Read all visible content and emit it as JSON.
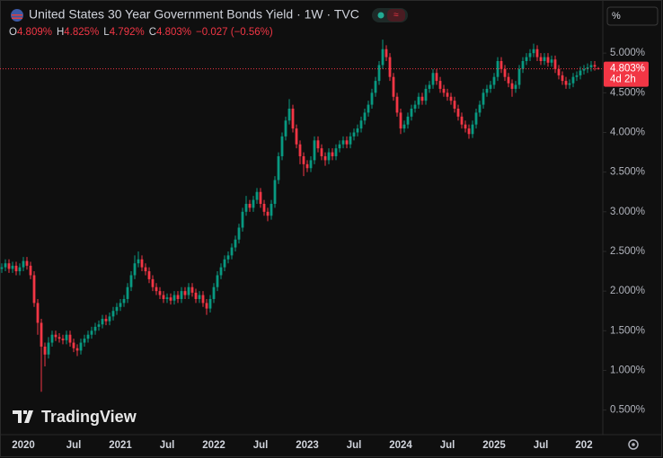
{
  "chart_data": {
    "type": "candlestick",
    "title": "United States 30 Year Government Bonds Yield · 1W · TVC",
    "ohlc_legend": [
      {
        "key": "O",
        "value": "4.809%"
      },
      {
        "key": "H",
        "value": "4.825%"
      },
      {
        "key": "L",
        "value": "4.792%"
      },
      {
        "key": "C",
        "value": "4.803%"
      }
    ],
    "change": "−0.027 (−0.56%)",
    "price_label": "4.803%",
    "countdown": "4d 2h",
    "scale_button": "%",
    "watermark": "TradingView",
    "up_color": "#089981",
    "down_color": "#f23645",
    "categories": [
      null,
      null,
      null,
      null,
      null,
      null,
      "2020",
      null,
      null,
      null,
      null,
      null,
      null,
      null,
      null,
      null,
      null,
      null,
      null,
      null,
      "Jul",
      null,
      null,
      null,
      null,
      null,
      null,
      null,
      null,
      null,
      null,
      null,
      null,
      "2021",
      null,
      null,
      null,
      null,
      null,
      null,
      null,
      null,
      null,
      null,
      null,
      null,
      "Jul",
      null,
      null,
      null,
      null,
      null,
      null,
      null,
      null,
      null,
      null,
      null,
      null,
      "2022",
      null,
      null,
      null,
      null,
      null,
      null,
      null,
      null,
      null,
      null,
      null,
      null,
      "Jul",
      null,
      null,
      null,
      null,
      null,
      null,
      null,
      null,
      null,
      null,
      null,
      null,
      "2023",
      null,
      null,
      null,
      null,
      null,
      null,
      null,
      null,
      null,
      null,
      null,
      null,
      "Jul",
      null,
      null,
      null,
      null,
      null,
      null,
      null,
      null,
      null,
      null,
      null,
      null,
      "2024",
      null,
      null,
      null,
      null,
      null,
      null,
      null,
      null,
      null,
      null,
      null,
      null,
      "Jul",
      null,
      null,
      null,
      null,
      null,
      null,
      null,
      null,
      null,
      null,
      null,
      null,
      "2025",
      null,
      null,
      null,
      null,
      null,
      null,
      null,
      null,
      null,
      null,
      null,
      null,
      "Jul",
      null,
      null,
      null,
      null,
      null,
      null,
      null,
      null,
      null,
      null,
      null,
      "202",
      null,
      null,
      null,
      null
    ],
    "open": [
      2.28,
      2.3,
      2.35,
      2.28,
      2.32,
      2.25,
      2.3,
      2.38,
      2.32,
      2.2,
      1.85,
      1.6,
      1.3,
      1.2,
      1.35,
      1.45,
      1.42,
      1.4,
      1.38,
      1.45,
      1.35,
      1.28,
      1.25,
      1.35,
      1.4,
      1.45,
      1.5,
      1.55,
      1.58,
      1.65,
      1.62,
      1.68,
      1.75,
      1.8,
      1.85,
      1.9,
      2.05,
      2.2,
      2.35,
      2.4,
      2.3,
      2.25,
      2.15,
      2.05,
      2.0,
      1.95,
      1.9,
      1.92,
      1.88,
      1.95,
      1.9,
      2.0,
      1.95,
      2.05,
      1.98,
      1.9,
      1.95,
      1.85,
      1.78,
      1.9,
      2.05,
      2.2,
      2.3,
      2.4,
      2.45,
      2.55,
      2.65,
      2.8,
      3.0,
      3.1,
      3.05,
      3.15,
      3.25,
      3.1,
      3.0,
      2.95,
      3.1,
      3.4,
      3.7,
      3.95,
      4.15,
      4.3,
      4.05,
      3.85,
      3.7,
      3.6,
      3.55,
      3.65,
      3.9,
      3.8,
      3.7,
      3.65,
      3.75,
      3.7,
      3.8,
      3.85,
      3.9,
      3.85,
      3.95,
      4.0,
      4.05,
      4.15,
      4.25,
      4.35,
      4.5,
      4.65,
      4.85,
      5.05,
      4.95,
      4.7,
      4.45,
      4.25,
      4.05,
      4.1,
      4.2,
      4.3,
      4.35,
      4.45,
      4.4,
      4.55,
      4.6,
      4.75,
      4.65,
      4.55,
      4.5,
      4.45,
      4.4,
      4.3,
      4.2,
      4.1,
      4.05,
      3.98,
      4.1,
      4.25,
      4.35,
      4.5,
      4.55,
      4.6,
      4.7,
      4.9,
      4.8,
      4.7,
      4.62,
      4.55,
      4.6,
      4.8,
      4.9,
      4.95,
      5.0,
      5.05,
      4.95,
      4.9,
      4.95,
      4.88,
      4.92,
      4.8,
      4.72,
      4.65,
      4.6,
      4.62,
      4.7,
      4.72,
      4.78,
      4.8,
      4.82,
      4.85,
      4.809
    ],
    "high": [
      2.35,
      2.4,
      2.4,
      2.37,
      2.37,
      2.35,
      2.43,
      2.43,
      2.37,
      2.25,
      1.9,
      1.65,
      1.35,
      1.42,
      1.5,
      1.5,
      1.47,
      1.45,
      1.5,
      1.5,
      1.4,
      1.33,
      1.4,
      1.45,
      1.5,
      1.55,
      1.6,
      1.63,
      1.7,
      1.7,
      1.73,
      1.8,
      1.85,
      1.9,
      1.95,
      2.1,
      2.25,
      2.45,
      2.5,
      2.45,
      2.35,
      2.3,
      2.2,
      2.1,
      2.05,
      2.0,
      1.97,
      1.97,
      2.0,
      2.0,
      2.05,
      2.05,
      2.1,
      2.1,
      2.03,
      2.0,
      2.0,
      1.9,
      1.95,
      2.1,
      2.25,
      2.35,
      2.45,
      2.5,
      2.6,
      2.7,
      2.85,
      3.05,
      3.2,
      3.15,
      3.2,
      3.3,
      3.3,
      3.15,
      3.05,
      3.15,
      3.45,
      3.75,
      4.0,
      4.2,
      4.42,
      4.35,
      4.1,
      3.9,
      3.75,
      3.65,
      3.7,
      3.95,
      3.95,
      3.85,
      3.75,
      3.8,
      3.8,
      3.85,
      3.9,
      3.95,
      3.95,
      4.0,
      4.05,
      4.1,
      4.2,
      4.3,
      4.4,
      4.55,
      4.7,
      4.9,
      5.17,
      5.1,
      5.0,
      4.75,
      4.5,
      4.3,
      4.15,
      4.25,
      4.35,
      4.4,
      4.5,
      4.5,
      4.6,
      4.65,
      4.8,
      4.8,
      4.7,
      4.6,
      4.55,
      4.5,
      4.45,
      4.35,
      4.25,
      4.15,
      4.1,
      4.15,
      4.3,
      4.4,
      4.55,
      4.6,
      4.65,
      4.75,
      4.95,
      4.95,
      4.85,
      4.75,
      4.67,
      4.65,
      4.85,
      4.95,
      5.0,
      5.05,
      5.12,
      5.1,
      5.0,
      5.0,
      5.0,
      4.97,
      4.97,
      4.85,
      4.77,
      4.7,
      4.67,
      4.75,
      4.77,
      4.83,
      4.85,
      4.87,
      4.9,
      4.9,
      4.825
    ],
    "low": [
      2.23,
      2.25,
      2.23,
      2.23,
      2.2,
      2.2,
      2.25,
      2.27,
      2.15,
      1.8,
      1.45,
      0.73,
      1.05,
      1.15,
      1.3,
      1.37,
      1.35,
      1.33,
      1.33,
      1.3,
      1.23,
      1.18,
      1.2,
      1.3,
      1.35,
      1.4,
      1.45,
      1.5,
      1.53,
      1.57,
      1.57,
      1.63,
      1.7,
      1.75,
      1.8,
      1.85,
      2.0,
      2.15,
      2.3,
      2.25,
      2.2,
      2.1,
      2.0,
      1.95,
      1.9,
      1.85,
      1.85,
      1.83,
      1.83,
      1.85,
      1.85,
      1.9,
      1.9,
      1.93,
      1.85,
      1.85,
      1.8,
      1.7,
      1.73,
      1.85,
      2.0,
      2.15,
      2.25,
      2.35,
      2.4,
      2.5,
      2.6,
      2.75,
      2.95,
      3.0,
      3.0,
      3.1,
      3.05,
      2.95,
      2.88,
      2.9,
      3.05,
      3.35,
      3.65,
      3.9,
      4.1,
      4.0,
      3.8,
      3.6,
      3.45,
      3.5,
      3.5,
      3.6,
      3.75,
      3.65,
      3.58,
      3.6,
      3.65,
      3.65,
      3.75,
      3.8,
      3.8,
      3.8,
      3.9,
      3.95,
      4.0,
      4.1,
      4.2,
      4.3,
      4.45,
      4.6,
      4.8,
      4.9,
      4.65,
      4.4,
      4.2,
      3.98,
      4.0,
      4.05,
      4.15,
      4.25,
      4.3,
      4.35,
      4.35,
      4.5,
      4.55,
      4.6,
      4.5,
      4.45,
      4.4,
      4.35,
      4.25,
      4.15,
      4.05,
      4.0,
      3.92,
      3.93,
      4.05,
      4.2,
      4.3,
      4.45,
      4.5,
      4.55,
      4.65,
      4.75,
      4.65,
      4.57,
      4.45,
      4.5,
      4.55,
      4.75,
      4.85,
      4.9,
      4.95,
      4.9,
      4.85,
      4.85,
      4.83,
      4.83,
      4.75,
      4.67,
      4.6,
      4.55,
      4.55,
      4.57,
      4.65,
      4.67,
      4.73,
      4.75,
      4.77,
      4.78,
      4.792
    ],
    "close": [
      2.3,
      2.35,
      2.28,
      2.32,
      2.25,
      2.3,
      2.38,
      2.32,
      2.2,
      1.85,
      1.6,
      1.3,
      1.2,
      1.35,
      1.45,
      1.42,
      1.4,
      1.38,
      1.45,
      1.35,
      1.28,
      1.25,
      1.35,
      1.4,
      1.45,
      1.5,
      1.55,
      1.58,
      1.65,
      1.62,
      1.68,
      1.75,
      1.8,
      1.85,
      1.9,
      2.05,
      2.2,
      2.35,
      2.4,
      2.3,
      2.25,
      2.15,
      2.05,
      2.0,
      1.95,
      1.9,
      1.92,
      1.88,
      1.95,
      1.9,
      2.0,
      1.95,
      2.05,
      1.98,
      1.9,
      1.95,
      1.85,
      1.78,
      1.9,
      2.05,
      2.2,
      2.3,
      2.4,
      2.45,
      2.55,
      2.65,
      2.8,
      3.0,
      3.1,
      3.05,
      3.15,
      3.25,
      3.1,
      3.0,
      2.95,
      3.1,
      3.4,
      3.7,
      3.95,
      4.15,
      4.3,
      4.05,
      3.85,
      3.7,
      3.6,
      3.55,
      3.65,
      3.9,
      3.8,
      3.7,
      3.65,
      3.75,
      3.7,
      3.8,
      3.85,
      3.9,
      3.85,
      3.95,
      4.0,
      4.05,
      4.15,
      4.25,
      4.35,
      4.5,
      4.65,
      4.85,
      5.05,
      4.95,
      4.7,
      4.45,
      4.25,
      4.05,
      4.1,
      4.2,
      4.3,
      4.35,
      4.45,
      4.4,
      4.55,
      4.6,
      4.75,
      4.65,
      4.55,
      4.5,
      4.45,
      4.4,
      4.3,
      4.2,
      4.1,
      4.05,
      3.98,
      4.1,
      4.25,
      4.35,
      4.5,
      4.55,
      4.6,
      4.7,
      4.9,
      4.8,
      4.7,
      4.62,
      4.55,
      4.6,
      4.8,
      4.9,
      4.95,
      5.0,
      5.05,
      4.95,
      4.9,
      4.95,
      4.88,
      4.92,
      4.8,
      4.72,
      4.65,
      4.6,
      4.62,
      4.7,
      4.72,
      4.78,
      4.8,
      4.82,
      4.85,
      4.83,
      4.803
    ],
    "ylim": [
      0.19,
      5.67
    ],
    "yticks": [
      {
        "value": 0.5,
        "label": "0.500%"
      },
      {
        "value": 1,
        "label": "1.000%"
      },
      {
        "value": 1.5,
        "label": "1.500%"
      },
      {
        "value": 2,
        "label": "2.000%"
      },
      {
        "value": 2.5,
        "label": "2.500%"
      },
      {
        "value": 3,
        "label": "3.000%"
      },
      {
        "value": 3.5,
        "label": "3.500%"
      },
      {
        "value": 4,
        "label": "4.000%"
      },
      {
        "value": 4.5,
        "label": "4.500%"
      },
      {
        "value": 5,
        "label": "5.000%"
      }
    ],
    "grid": false
  }
}
